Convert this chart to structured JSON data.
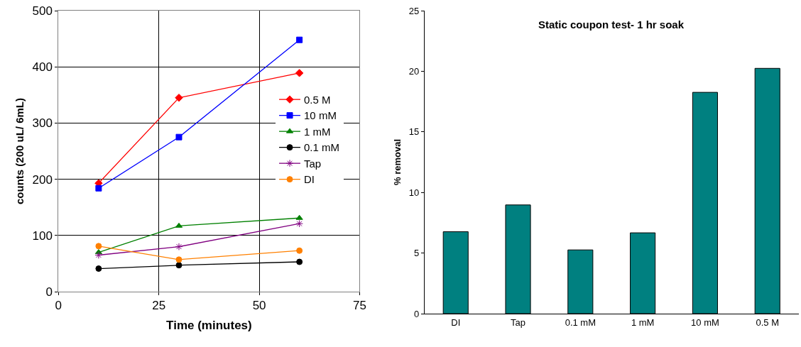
{
  "chart_data": [
    {
      "type": "line",
      "xlabel": "Time (minutes)",
      "ylabel": "counts (200 uL/ 6mL)",
      "x": [
        10,
        30,
        60
      ],
      "xlim": [
        0,
        75
      ],
      "xticks": [
        0,
        25,
        50,
        75
      ],
      "ylim": [
        0,
        500
      ],
      "yticks": [
        0,
        100,
        200,
        300,
        400,
        500
      ],
      "grid": true,
      "legend": "right",
      "series": [
        {
          "name": "0.5 M",
          "color": "#ff0000",
          "marker": "diamond",
          "values": [
            193,
            345,
            389
          ]
        },
        {
          "name": "10 mM",
          "color": "#0000ff",
          "marker": "square",
          "values": [
            184,
            275,
            448
          ]
        },
        {
          "name": "1 mM",
          "color": "#008000",
          "marker": "triangle",
          "values": [
            70,
            117,
            131
          ]
        },
        {
          "name": "0.1 mM",
          "color": "#000000",
          "marker": "circle",
          "values": [
            41,
            47,
            53
          ]
        },
        {
          "name": "Tap",
          "color": "#800080",
          "marker": "cross",
          "values": [
            65,
            80,
            121
          ]
        },
        {
          "name": "DI",
          "color": "#ff8000",
          "marker": "circle",
          "values": [
            81,
            57,
            73
          ]
        }
      ]
    },
    {
      "type": "bar",
      "title": "Static coupon test- 1 hr soak",
      "ylabel": "% removal",
      "categories": [
        "DI",
        "Tap",
        "0.1 mM",
        "1 mM",
        "10 mM",
        "0.5 M"
      ],
      "ylim": [
        0,
        25
      ],
      "yticks": [
        0,
        5,
        10,
        15,
        20,
        25
      ],
      "color": "#008080",
      "values": [
        6.76,
        8.97,
        5.26,
        6.67,
        18.26,
        20.24
      ]
    }
  ]
}
